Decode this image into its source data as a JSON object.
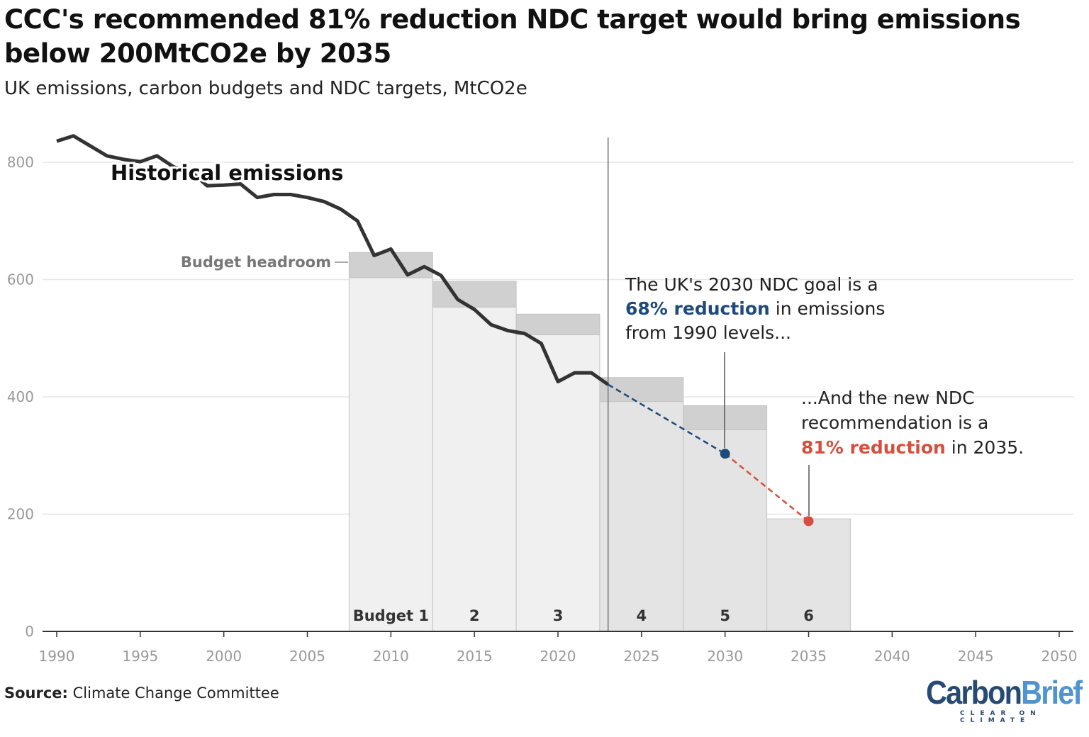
{
  "title": "CCC's recommended 81% reduction NDC target would bring emissions below 200MtCO2e by 2035",
  "subtitle": "UK emissions, carbon budgets and NDC targets, MtCO2e",
  "source": {
    "label": "Source:",
    "text": "Climate Change Committee"
  },
  "logo": {
    "part1": "Carbon",
    "part2": "Brief",
    "tagline": "CLEAR ON CLIMATE"
  },
  "colors": {
    "historical": "#333333",
    "ndc2030": "#1f4a7c",
    "ndc2035": "#d64f3e",
    "budget_early": "#f0f0f0",
    "budget_late": "#e4e4e4",
    "headroom": "#d0d0d0",
    "logo_dark": "#264a73",
    "logo_light": "#4f94d0"
  },
  "chart_data": {
    "type": "line",
    "title": "CCC's recommended 81% reduction NDC target would bring emissions below 200MtCO2e by 2035",
    "subtitle": "UK emissions, carbon budgets and NDC targets, MtCO2e",
    "xlim": [
      1990,
      2050
    ],
    "ylim": [
      0,
      800
    ],
    "x_ticks": [
      1990,
      1995,
      2000,
      2005,
      2010,
      2015,
      2020,
      2025,
      2030,
      2035,
      2040,
      2045,
      2050
    ],
    "y_ticks": [
      0,
      200,
      400,
      600,
      800
    ],
    "grid": "horizontal",
    "historical": {
      "name": "Historical emissions",
      "x": [
        1990,
        1991,
        1992,
        1993,
        1994,
        1995,
        1996,
        1997,
        1998,
        1999,
        2000,
        2001,
        2002,
        2003,
        2004,
        2005,
        2006,
        2007,
        2008,
        2009,
        2010,
        2011,
        2012,
        2013,
        2014,
        2015,
        2016,
        2017,
        2018,
        2019,
        2020,
        2021,
        2022,
        2023
      ],
      "y": [
        836,
        845,
        828,
        811,
        805,
        801,
        811,
        792,
        785,
        760,
        761,
        763,
        740,
        745,
        745,
        740,
        733,
        720,
        700,
        641,
        652,
        608,
        622,
        607,
        566,
        549,
        523,
        513,
        508,
        491,
        426,
        441,
        441,
        421
      ]
    },
    "projection_2030": {
      "x": [
        2023,
        2030
      ],
      "y": [
        421,
        303
      ]
    },
    "projection_2035": {
      "x": [
        2030,
        2035
      ],
      "y": [
        303,
        188
      ]
    },
    "targets": [
      {
        "year": 2030,
        "value": 303
      },
      {
        "year": 2035,
        "value": 188
      }
    ],
    "current_year_line": 2023,
    "budgets": [
      {
        "label": "Budget 1",
        "start": 2007.5,
        "end": 2012.5,
        "value": 603,
        "headroom_top": 646
      },
      {
        "label": "2",
        "start": 2012.5,
        "end": 2017.5,
        "value": 553,
        "headroom_top": 597
      },
      {
        "label": "3",
        "start": 2017.5,
        "end": 2022.5,
        "value": 506,
        "headroom_top": 541
      },
      {
        "label": "4",
        "start": 2022.5,
        "end": 2027.5,
        "value": 392,
        "headroom_top": 433
      },
      {
        "label": "5",
        "start": 2027.5,
        "end": 2032.5,
        "value": 344,
        "headroom_top": 385
      },
      {
        "label": "6",
        "start": 2032.5,
        "end": 2037.5,
        "value": 192,
        "headroom_top": null
      }
    ],
    "annotations": {
      "historical_label": "Historical emissions",
      "headroom_label": "Budget headroom",
      "ndc2030": {
        "line1": "The UK's 2030 NDC goal is a",
        "highlight": "68% reduction",
        "line2_rest": " in emissions",
        "line3": "from 1990 levels..."
      },
      "ndc2035": {
        "line1": "...And the new NDC",
        "line2": "recommendation is a",
        "highlight": "81% reduction",
        "line3_rest": " in 2035."
      }
    }
  }
}
